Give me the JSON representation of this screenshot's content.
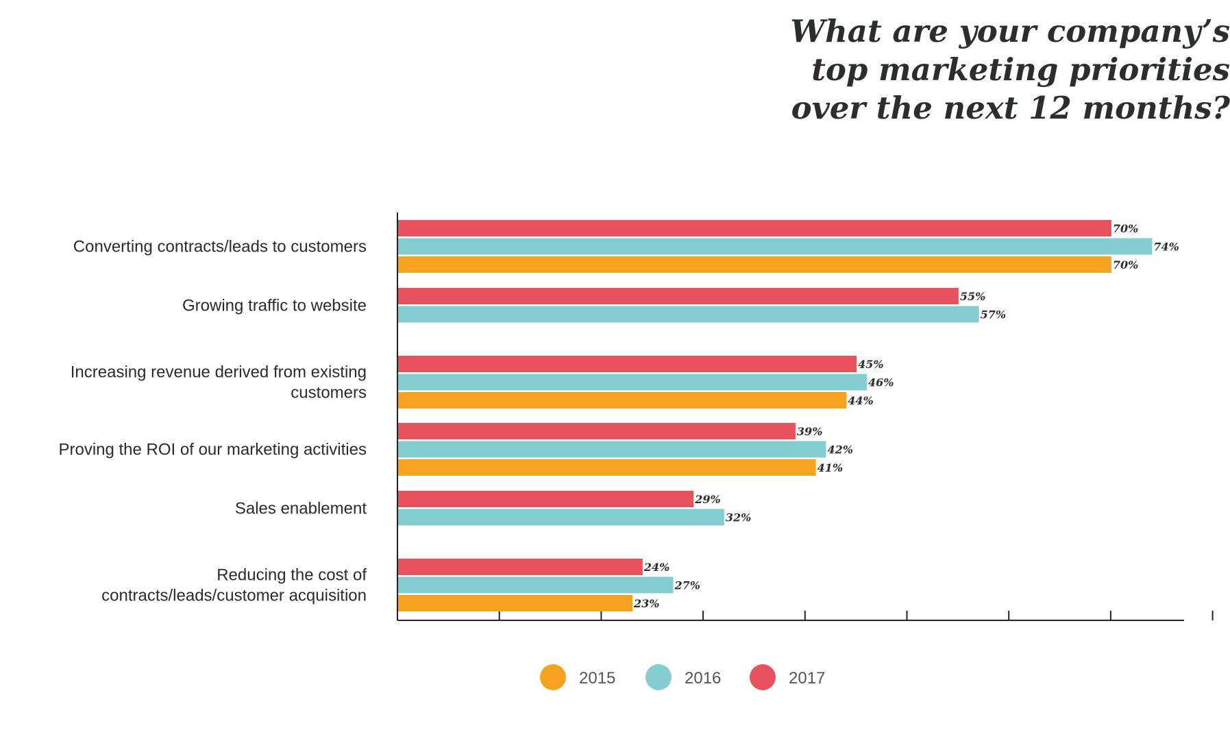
{
  "chart_data": {
    "type": "bar",
    "orientation": "horizontal",
    "title_lines": [
      "What are your company’s",
      "top marketing priorities",
      "over the next 12 months?"
    ],
    "xlabel": "",
    "ylabel": "",
    "xlim": [
      0,
      80
    ],
    "grid": false,
    "legend_position": "bottom",
    "categories": [
      {
        "lines": [
          "Converting contracts/leads to customers"
        ]
      },
      {
        "lines": [
          "Growing traffic to website"
        ]
      },
      {
        "lines": [
          "Increasing revenue derived from existing",
          "customers"
        ]
      },
      {
        "lines": [
          "Proving the ROI of our marketing activities"
        ]
      },
      {
        "lines": [
          "Sales enablement"
        ]
      },
      {
        "lines": [
          "Reducing the cost of",
          "contracts/leads/customer acquisition"
        ]
      }
    ],
    "series": [
      {
        "name": "2017",
        "color": "#e8525c",
        "values": [
          70,
          55,
          45,
          39,
          29,
          24
        ],
        "labels": [
          "70%",
          "55%",
          "45%",
          "39%",
          "29%",
          "24%"
        ]
      },
      {
        "name": "2016",
        "color": "#84ced1",
        "values": [
          74,
          57,
          46,
          42,
          32,
          27
        ],
        "labels": [
          "74%",
          "57%",
          "46%",
          "42%",
          "32%",
          "27%"
        ]
      },
      {
        "name": "2015",
        "color": "#f6a31f",
        "values": [
          70,
          null,
          44,
          41,
          null,
          23
        ],
        "labels": [
          "70%",
          null,
          "44%",
          "41%",
          null,
          "23%"
        ]
      }
    ],
    "legend": [
      {
        "name": "2015",
        "color": "#f6a31f"
      },
      {
        "name": "2016",
        "color": "#84ced1"
      },
      {
        "name": "2017",
        "color": "#e8525c"
      }
    ]
  }
}
